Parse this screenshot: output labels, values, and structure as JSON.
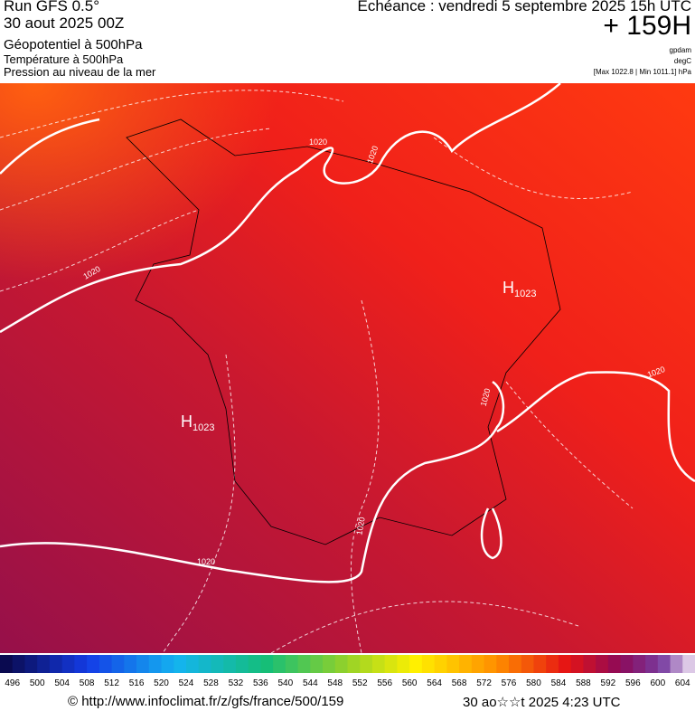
{
  "header": {
    "run": "Run GFS 0.5°",
    "date": "30 aout 2025 00Z",
    "line1": "Géopotentiel à 500hPa",
    "line2": "Température à 500hPa",
    "line3": "Pression au niveau de la mer",
    "forecast": "Echéance : vendredi 5 septembre 2025 15h UTC",
    "lead": "+ 159H",
    "units": [
      "gpdam",
      "degC",
      "[Max 1022.8 | Min 1011.1] hPa"
    ]
  },
  "map": {
    "highs": [
      {
        "letter": "H",
        "value": "1023"
      },
      {
        "letter": "H",
        "value": "1023"
      }
    ],
    "contour_labels": [
      "1020",
      "1020",
      "1020",
      "1020",
      "1020",
      "1020",
      "1020"
    ]
  },
  "colorbar": {
    "labels": [
      496,
      500,
      504,
      508,
      512,
      516,
      520,
      524,
      528,
      532,
      536,
      540,
      544,
      548,
      552,
      556,
      560,
      564,
      568,
      572,
      576,
      580,
      584,
      588,
      592,
      596,
      600,
      604
    ]
  },
  "footer": {
    "url": "© http://www.infoclimat.fr/z/gfs/france/500/159",
    "timestamp": "30 ao☆☆t 2025  4:23 UTC"
  }
}
